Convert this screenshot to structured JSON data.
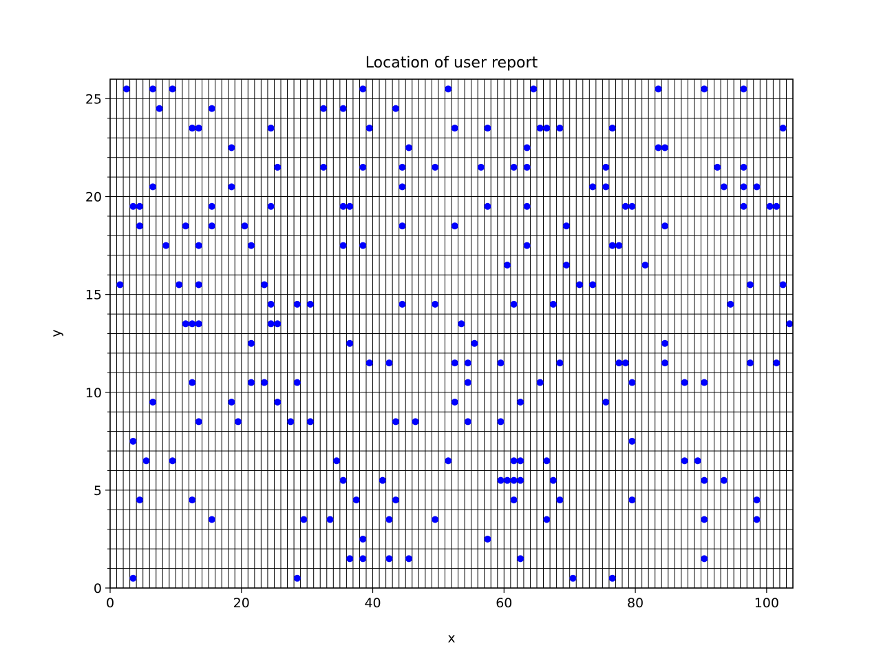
{
  "chart_data": {
    "type": "scatter",
    "title": "Location of user report",
    "xlabel": "x",
    "ylabel": "y",
    "xlim": [
      0,
      104
    ],
    "ylim": [
      0,
      26
    ],
    "x_ticks": [
      0,
      20,
      40,
      60,
      80,
      100
    ],
    "y_ticks": [
      0,
      5,
      10,
      15,
      20,
      25
    ],
    "grid": "on, every 1 unit",
    "marker_color": "#0000ff",
    "points": [
      [
        1.5,
        15.5
      ],
      [
        2.5,
        25.5
      ],
      [
        3.5,
        19.5
      ],
      [
        3.5,
        7.5
      ],
      [
        3.5,
        0.5
      ],
      [
        4.5,
        19.5
      ],
      [
        4.5,
        18.5
      ],
      [
        4.5,
        4.5
      ],
      [
        5.5,
        6.5
      ],
      [
        6.5,
        25.5
      ],
      [
        6.5,
        20.5
      ],
      [
        6.5,
        9.5
      ],
      [
        7.5,
        24.5
      ],
      [
        8.5,
        17.5
      ],
      [
        9.5,
        25.5
      ],
      [
        9.5,
        6.5
      ],
      [
        10.5,
        15.5
      ],
      [
        11.5,
        18.5
      ],
      [
        11.5,
        13.5
      ],
      [
        12.5,
        23.5
      ],
      [
        12.5,
        13.5
      ],
      [
        12.5,
        10.5
      ],
      [
        12.5,
        4.5
      ],
      [
        13.5,
        23.5
      ],
      [
        13.5,
        17.5
      ],
      [
        13.5,
        15.5
      ],
      [
        13.5,
        13.5
      ],
      [
        13.5,
        8.5
      ],
      [
        15.5,
        24.5
      ],
      [
        15.5,
        19.5
      ],
      [
        15.5,
        18.5
      ],
      [
        15.5,
        3.5
      ],
      [
        18.5,
        22.5
      ],
      [
        18.5,
        20.5
      ],
      [
        18.5,
        9.5
      ],
      [
        19.5,
        8.5
      ],
      [
        20.5,
        18.5
      ],
      [
        21.5,
        17.5
      ],
      [
        21.5,
        12.5
      ],
      [
        21.5,
        10.5
      ],
      [
        23.5,
        15.5
      ],
      [
        23.5,
        10.5
      ],
      [
        24.5,
        23.5
      ],
      [
        24.5,
        19.5
      ],
      [
        24.5,
        14.5
      ],
      [
        24.5,
        13.5
      ],
      [
        25.5,
        21.5
      ],
      [
        25.5,
        13.5
      ],
      [
        25.5,
        9.5
      ],
      [
        27.5,
        8.5
      ],
      [
        28.5,
        14.5
      ],
      [
        28.5,
        10.5
      ],
      [
        28.5,
        0.5
      ],
      [
        29.5,
        3.5
      ],
      [
        30.5,
        14.5
      ],
      [
        30.5,
        8.5
      ],
      [
        32.5,
        24.5
      ],
      [
        32.5,
        21.5
      ],
      [
        33.5,
        3.5
      ],
      [
        34.5,
        6.5
      ],
      [
        35.5,
        24.5
      ],
      [
        35.5,
        19.5
      ],
      [
        35.5,
        17.5
      ],
      [
        35.5,
        5.5
      ],
      [
        36.5,
        19.5
      ],
      [
        36.5,
        12.5
      ],
      [
        36.5,
        1.5
      ],
      [
        37.5,
        4.5
      ],
      [
        38.5,
        25.5
      ],
      [
        38.5,
        21.5
      ],
      [
        38.5,
        17.5
      ],
      [
        38.5,
        2.5
      ],
      [
        38.5,
        1.5
      ],
      [
        39.5,
        23.5
      ],
      [
        39.5,
        11.5
      ],
      [
        41.5,
        5.5
      ],
      [
        42.5,
        11.5
      ],
      [
        42.5,
        3.5
      ],
      [
        42.5,
        1.5
      ],
      [
        43.5,
        24.5
      ],
      [
        43.5,
        8.5
      ],
      [
        43.5,
        4.5
      ],
      [
        44.5,
        21.5
      ],
      [
        44.5,
        20.5
      ],
      [
        44.5,
        18.5
      ],
      [
        44.5,
        14.5
      ],
      [
        45.5,
        22.5
      ],
      [
        45.5,
        1.5
      ],
      [
        46.5,
        8.5
      ],
      [
        49.5,
        21.5
      ],
      [
        49.5,
        14.5
      ],
      [
        49.5,
        3.5
      ],
      [
        51.5,
        25.5
      ],
      [
        51.5,
        6.5
      ],
      [
        52.5,
        23.5
      ],
      [
        52.5,
        18.5
      ],
      [
        52.5,
        11.5
      ],
      [
        52.5,
        9.5
      ],
      [
        53.5,
        13.5
      ],
      [
        54.5,
        11.5
      ],
      [
        54.5,
        10.5
      ],
      [
        54.5,
        8.5
      ],
      [
        55.5,
        12.5
      ],
      [
        56.5,
        21.5
      ],
      [
        57.5,
        23.5
      ],
      [
        57.5,
        19.5
      ],
      [
        57.5,
        2.5
      ],
      [
        59.5,
        11.5
      ],
      [
        59.5,
        8.5
      ],
      [
        59.5,
        5.5
      ],
      [
        60.5,
        16.5
      ],
      [
        60.5,
        5.5
      ],
      [
        61.5,
        21.5
      ],
      [
        61.5,
        14.5
      ],
      [
        61.5,
        6.5
      ],
      [
        61.5,
        5.5
      ],
      [
        61.5,
        4.5
      ],
      [
        62.5,
        9.5
      ],
      [
        62.5,
        6.5
      ],
      [
        62.5,
        5.5
      ],
      [
        62.5,
        1.5
      ],
      [
        63.5,
        22.5
      ],
      [
        63.5,
        21.5
      ],
      [
        63.5,
        19.5
      ],
      [
        63.5,
        17.5
      ],
      [
        64.5,
        25.5
      ],
      [
        65.5,
        23.5
      ],
      [
        65.5,
        10.5
      ],
      [
        66.5,
        23.5
      ],
      [
        66.5,
        6.5
      ],
      [
        66.5,
        3.5
      ],
      [
        67.5,
        14.5
      ],
      [
        67.5,
        5.5
      ],
      [
        68.5,
        23.5
      ],
      [
        68.5,
        11.5
      ],
      [
        68.5,
        4.5
      ],
      [
        69.5,
        18.5
      ],
      [
        69.5,
        16.5
      ],
      [
        70.5,
        0.5
      ],
      [
        71.5,
        15.5
      ],
      [
        73.5,
        20.5
      ],
      [
        73.5,
        15.5
      ],
      [
        75.5,
        21.5
      ],
      [
        75.5,
        20.5
      ],
      [
        75.5,
        9.5
      ],
      [
        76.5,
        23.5
      ],
      [
        76.5,
        17.5
      ],
      [
        76.5,
        0.5
      ],
      [
        77.5,
        17.5
      ],
      [
        77.5,
        11.5
      ],
      [
        78.5,
        19.5
      ],
      [
        78.5,
        11.5
      ],
      [
        79.5,
        19.5
      ],
      [
        79.5,
        10.5
      ],
      [
        79.5,
        7.5
      ],
      [
        79.5,
        4.5
      ],
      [
        81.5,
        16.5
      ],
      [
        83.5,
        25.5
      ],
      [
        83.5,
        22.5
      ],
      [
        84.5,
        22.5
      ],
      [
        84.5,
        18.5
      ],
      [
        84.5,
        12.5
      ],
      [
        84.5,
        11.5
      ],
      [
        87.5,
        10.5
      ],
      [
        87.5,
        6.5
      ],
      [
        89.5,
        6.5
      ],
      [
        90.5,
        25.5
      ],
      [
        90.5,
        10.5
      ],
      [
        90.5,
        5.5
      ],
      [
        90.5,
        3.5
      ],
      [
        90.5,
        1.5
      ],
      [
        92.5,
        21.5
      ],
      [
        93.5,
        20.5
      ],
      [
        93.5,
        5.5
      ],
      [
        94.5,
        14.5
      ],
      [
        96.5,
        25.5
      ],
      [
        96.5,
        21.5
      ],
      [
        96.5,
        20.5
      ],
      [
        96.5,
        19.5
      ],
      [
        97.5,
        15.5
      ],
      [
        97.5,
        11.5
      ],
      [
        98.5,
        20.5
      ],
      [
        98.5,
        4.5
      ],
      [
        98.5,
        3.5
      ],
      [
        100.5,
        19.5
      ],
      [
        101.5,
        19.5
      ],
      [
        101.5,
        11.5
      ],
      [
        102.5,
        23.5
      ],
      [
        102.5,
        15.5
      ],
      [
        103.5,
        13.5
      ]
    ]
  }
}
